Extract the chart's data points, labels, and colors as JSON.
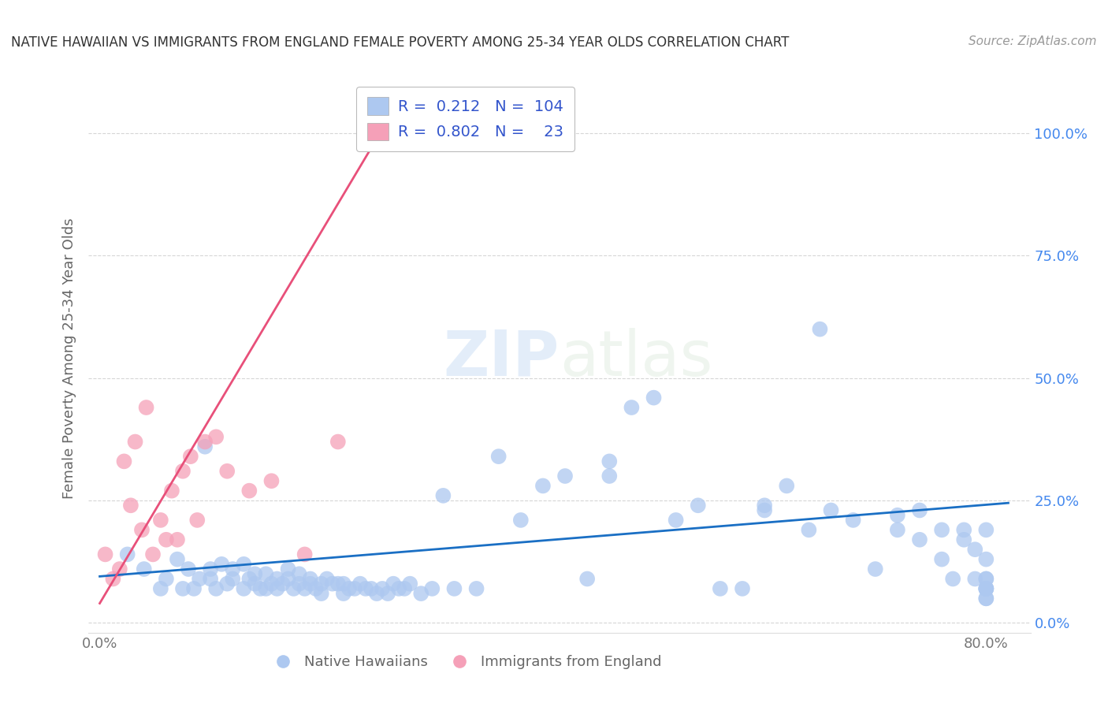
{
  "title": "NATIVE HAWAIIAN VS IMMIGRANTS FROM ENGLAND FEMALE POVERTY AMONG 25-34 YEAR OLDS CORRELATION CHART",
  "source": "Source: ZipAtlas.com",
  "ylabel": "Female Poverty Among 25-34 Year Olds",
  "xlim": [
    -0.01,
    0.84
  ],
  "ylim": [
    -0.02,
    1.1
  ],
  "R_blue": 0.212,
  "N_blue": 104,
  "R_pink": 0.802,
  "N_pink": 23,
  "blue_color": "#adc8f0",
  "pink_color": "#f5a0b8",
  "line_blue": "#1a6fc4",
  "line_pink": "#e8507a",
  "legend_text_color": "#3355cc",
  "watermark": "ZIPatlas",
  "background_color": "#ffffff",
  "grid_color": "#cccccc",
  "blue_scatter_x": [
    0.025,
    0.04,
    0.055,
    0.06,
    0.07,
    0.075,
    0.08,
    0.085,
    0.09,
    0.095,
    0.1,
    0.1,
    0.105,
    0.11,
    0.115,
    0.12,
    0.12,
    0.13,
    0.13,
    0.135,
    0.14,
    0.14,
    0.145,
    0.15,
    0.15,
    0.155,
    0.16,
    0.16,
    0.165,
    0.17,
    0.17,
    0.175,
    0.18,
    0.18,
    0.185,
    0.19,
    0.19,
    0.195,
    0.2,
    0.2,
    0.205,
    0.21,
    0.215,
    0.22,
    0.22,
    0.225,
    0.23,
    0.235,
    0.24,
    0.245,
    0.25,
    0.255,
    0.26,
    0.265,
    0.27,
    0.275,
    0.28,
    0.29,
    0.3,
    0.31,
    0.32,
    0.34,
    0.36,
    0.38,
    0.4,
    0.42,
    0.44,
    0.46,
    0.46,
    0.48,
    0.5,
    0.52,
    0.54,
    0.56,
    0.58,
    0.6,
    0.6,
    0.62,
    0.64,
    0.65,
    0.66,
    0.68,
    0.7,
    0.72,
    0.72,
    0.74,
    0.74,
    0.76,
    0.76,
    0.77,
    0.78,
    0.78,
    0.79,
    0.79,
    0.8,
    0.8,
    0.8,
    0.8,
    0.8,
    0.8,
    0.8,
    0.8,
    0.8,
    0.8
  ],
  "blue_scatter_y": [
    0.14,
    0.11,
    0.07,
    0.09,
    0.13,
    0.07,
    0.11,
    0.07,
    0.09,
    0.36,
    0.09,
    0.11,
    0.07,
    0.12,
    0.08,
    0.09,
    0.11,
    0.07,
    0.12,
    0.09,
    0.08,
    0.1,
    0.07,
    0.07,
    0.1,
    0.08,
    0.07,
    0.09,
    0.08,
    0.09,
    0.11,
    0.07,
    0.08,
    0.1,
    0.07,
    0.08,
    0.09,
    0.07,
    0.06,
    0.08,
    0.09,
    0.08,
    0.08,
    0.06,
    0.08,
    0.07,
    0.07,
    0.08,
    0.07,
    0.07,
    0.06,
    0.07,
    0.06,
    0.08,
    0.07,
    0.07,
    0.08,
    0.06,
    0.07,
    0.26,
    0.07,
    0.07,
    0.34,
    0.21,
    0.28,
    0.3,
    0.09,
    0.33,
    0.3,
    0.44,
    0.46,
    0.21,
    0.24,
    0.07,
    0.07,
    0.24,
    0.23,
    0.28,
    0.19,
    0.6,
    0.23,
    0.21,
    0.11,
    0.19,
    0.22,
    0.17,
    0.23,
    0.13,
    0.19,
    0.09,
    0.17,
    0.19,
    0.15,
    0.09,
    0.19,
    0.07,
    0.05,
    0.07,
    0.09,
    0.13,
    0.07,
    0.05,
    0.07,
    0.09
  ],
  "pink_scatter_x": [
    0.005,
    0.012,
    0.018,
    0.022,
    0.028,
    0.032,
    0.038,
    0.042,
    0.048,
    0.055,
    0.06,
    0.065,
    0.07,
    0.075,
    0.082,
    0.088,
    0.095,
    0.105,
    0.115,
    0.135,
    0.155,
    0.185,
    0.215
  ],
  "pink_scatter_y": [
    0.14,
    0.09,
    0.11,
    0.33,
    0.24,
    0.37,
    0.19,
    0.44,
    0.14,
    0.21,
    0.17,
    0.27,
    0.17,
    0.31,
    0.34,
    0.21,
    0.37,
    0.38,
    0.31,
    0.27,
    0.29,
    0.14,
    0.37
  ],
  "pink_line_x0": 0.0,
  "pink_line_y0": 0.04,
  "pink_line_x1": 0.245,
  "pink_line_y1": 0.97
}
